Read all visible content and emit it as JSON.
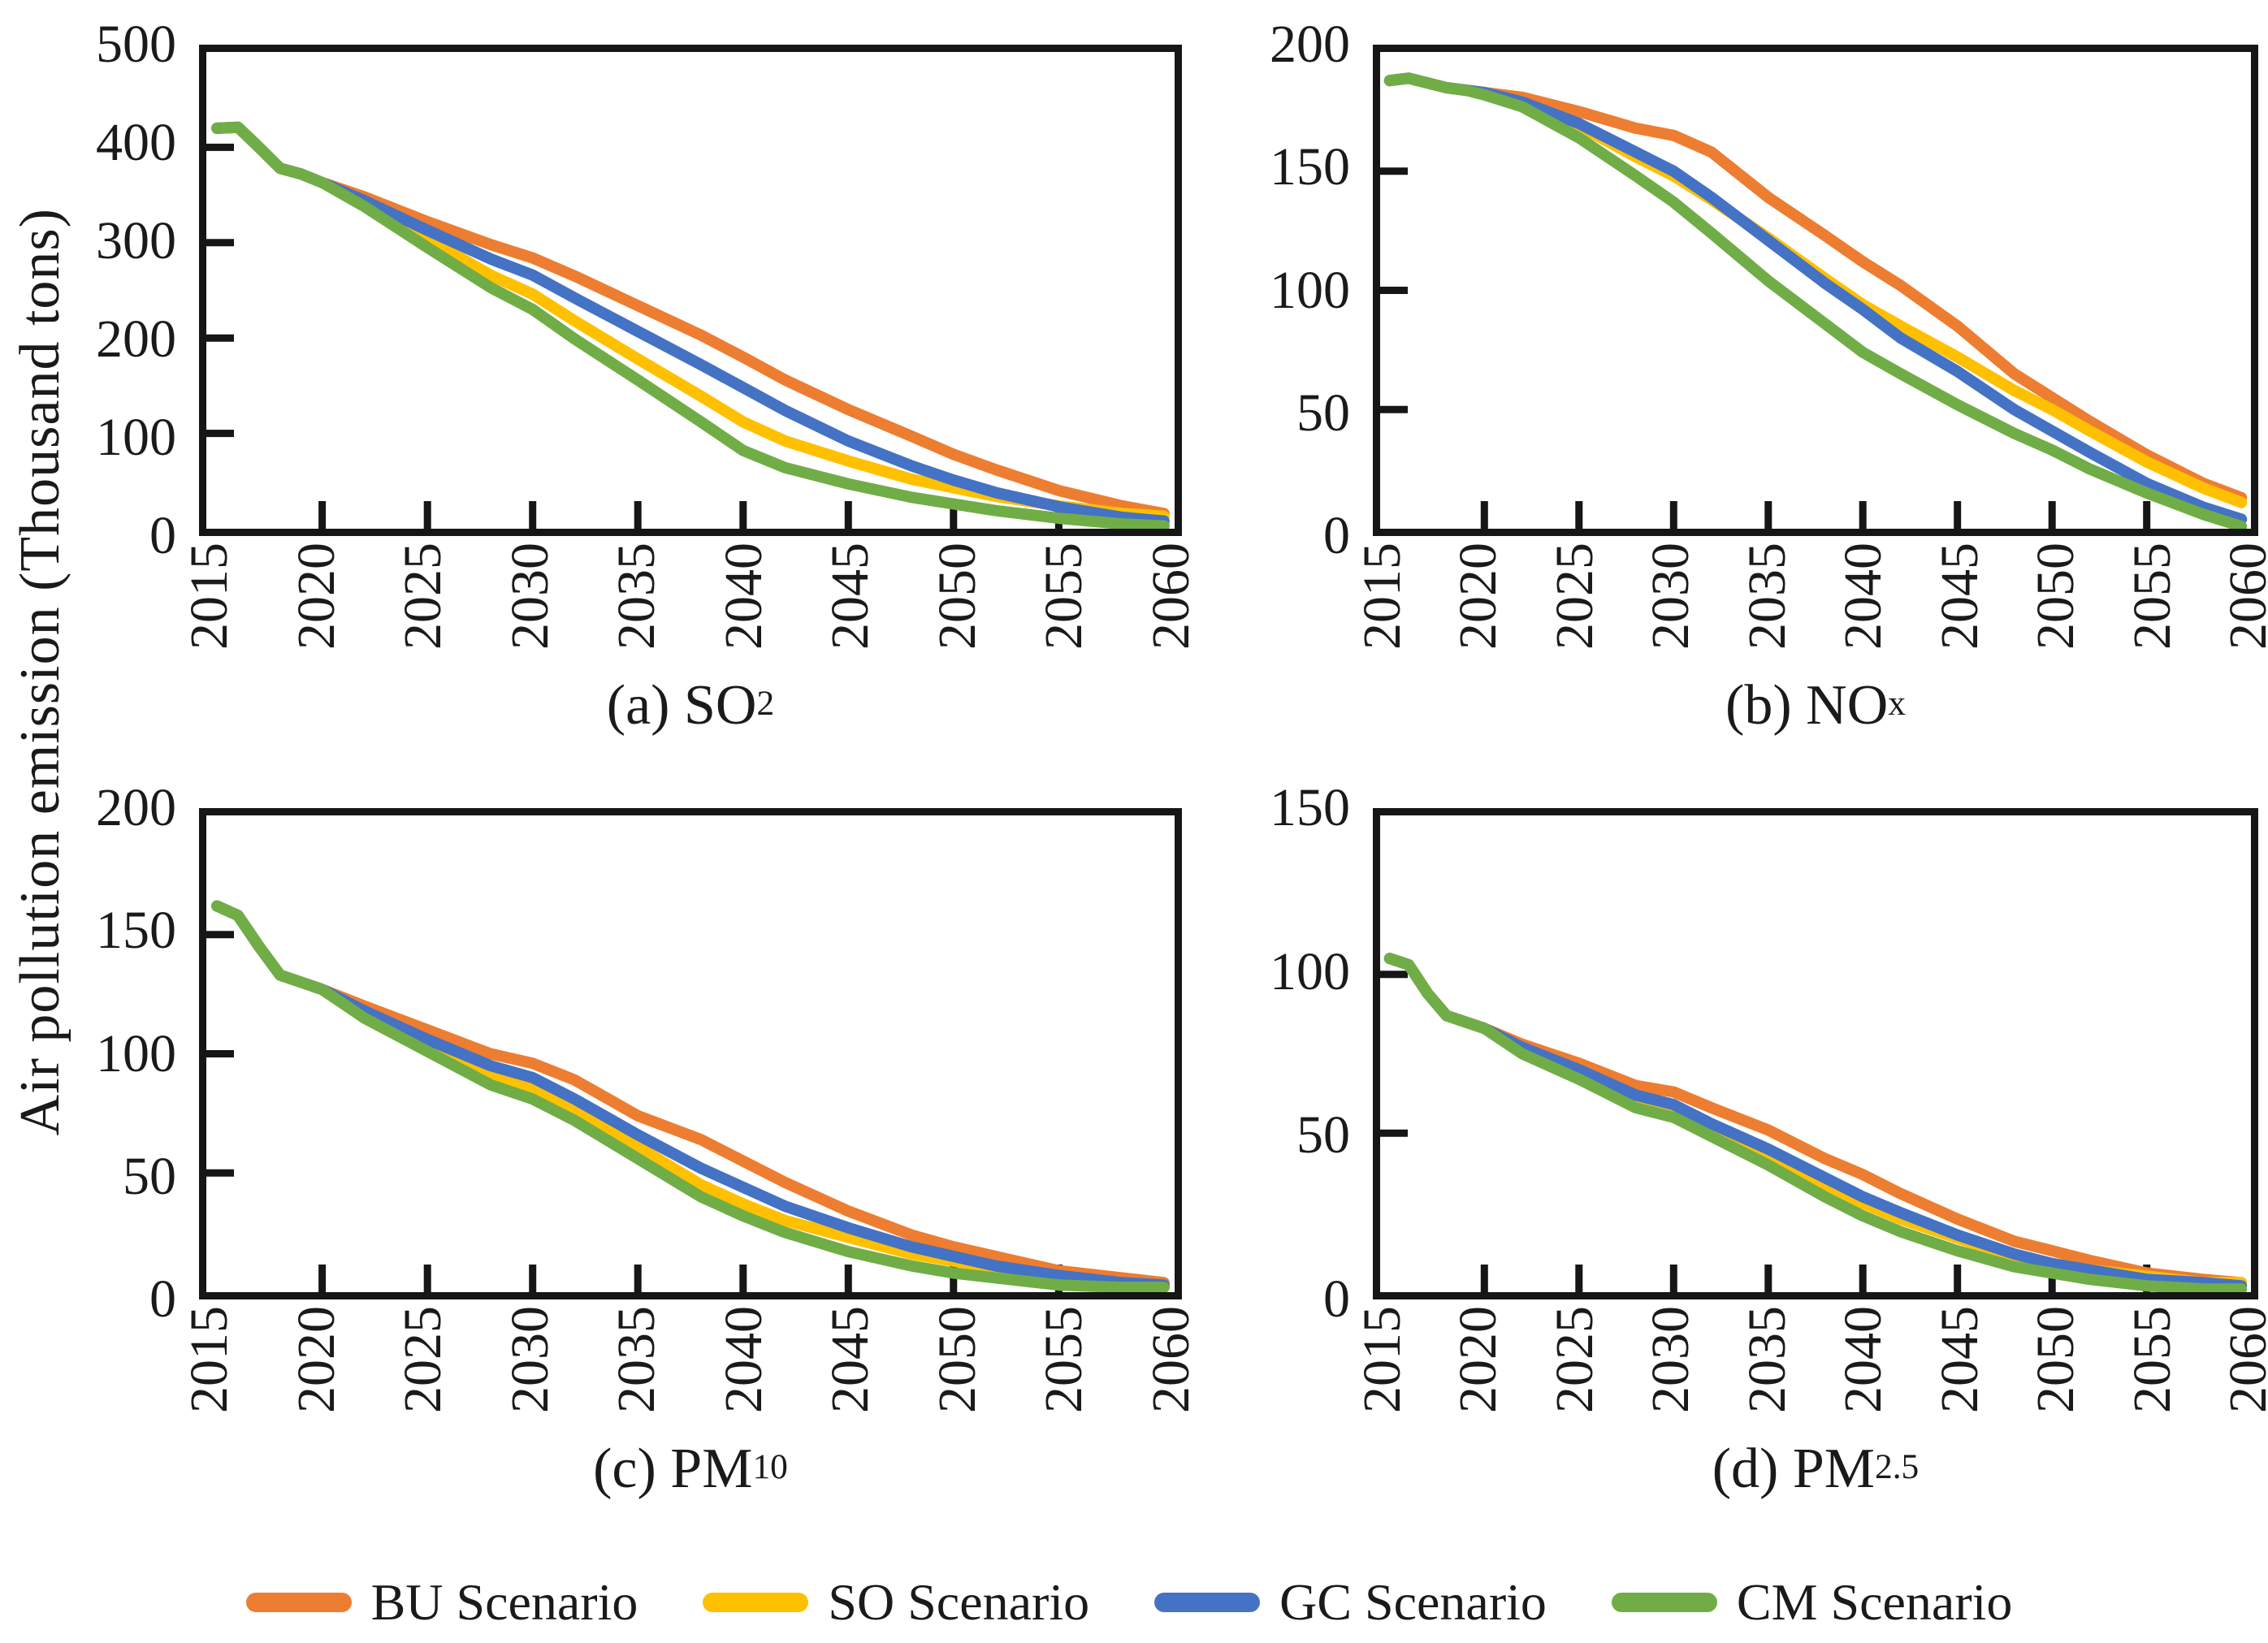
{
  "figure": {
    "y_axis_label": "Air pollution emission (Thousand tons)",
    "frame_color": "#161616",
    "background": "#ffffff"
  },
  "legend": {
    "items": [
      {
        "label": "BU Scenario",
        "color": "#ED7D31"
      },
      {
        "label": "SO Scenario",
        "color": "#FFC000"
      },
      {
        "label": "GC Scenario",
        "color": "#4472C4"
      },
      {
        "label": "CM Scenario",
        "color": "#70AD47"
      }
    ]
  },
  "chart_data": [
    {
      "id": "a",
      "type": "line",
      "title": "(a) SO2",
      "caption_main": "(a) SO",
      "caption_sub": "2",
      "ylim": [
        0,
        500
      ],
      "yticks": [
        0,
        100,
        200,
        300,
        400,
        500
      ],
      "xlim": [
        2015,
        2060
      ],
      "xticklabels": [
        "2015",
        "2020",
        "2025",
        "2030",
        "2035",
        "2040",
        "2045",
        "2050",
        "2055",
        "2060"
      ],
      "x": [
        2015,
        2016,
        2017,
        2018,
        2019,
        2020,
        2022,
        2025,
        2028,
        2030,
        2032,
        2035,
        2038,
        2040,
        2042,
        2045,
        2048,
        2050,
        2052,
        2055,
        2058,
        2060
      ],
      "series": [
        {
          "name": "BU Scenario",
          "color": "#ED7D31",
          "values": [
            420,
            421,
            400,
            378,
            372,
            363,
            348,
            322,
            298,
            284,
            265,
            234,
            203,
            180,
            156,
            125,
            97,
            78,
            62,
            40,
            24,
            16
          ]
        },
        {
          "name": "SO Scenario",
          "color": "#FFC000",
          "values": [
            420,
            421,
            400,
            378,
            372,
            363,
            341,
            304,
            266,
            246,
            218,
            178,
            139,
            112,
            92,
            71,
            52,
            43,
            34,
            24,
            16,
            13
          ]
        },
        {
          "name": "GC Scenario",
          "color": "#4472C4",
          "values": [
            420,
            421,
            400,
            378,
            372,
            363,
            344,
            313,
            283,
            266,
            242,
            207,
            172,
            148,
            124,
            92,
            66,
            51,
            38,
            23,
            12,
            8
          ]
        },
        {
          "name": "CM Scenario",
          "color": "#70AD47",
          "values": [
            420,
            421,
            400,
            378,
            372,
            363,
            338,
            295,
            253,
            230,
            199,
            156,
            112,
            82,
            64,
            47,
            33,
            26,
            19,
            11,
            5,
            3
          ]
        }
      ]
    },
    {
      "id": "b",
      "type": "line",
      "title": "(b) NOx",
      "caption_main": "(b) NO",
      "caption_sub": "x",
      "ylim": [
        0,
        200
      ],
      "yticks": [
        0,
        50,
        100,
        150,
        200
      ],
      "xlim": [
        2015,
        2060
      ],
      "xticklabels": [
        "2015",
        "2020",
        "2025",
        "2030",
        "2035",
        "2040",
        "2045",
        "2050",
        "2055",
        "2060"
      ],
      "x": [
        2015,
        2016,
        2017,
        2018,
        2019,
        2020,
        2022,
        2025,
        2028,
        2030,
        2032,
        2035,
        2038,
        2040,
        2042,
        2045,
        2048,
        2050,
        2052,
        2055,
        2058,
        2060
      ],
      "series": [
        {
          "name": "BU Scenario",
          "color": "#ED7D31",
          "values": [
            188,
            189,
            187,
            185,
            184,
            183,
            181,
            175,
            168,
            165,
            158,
            139,
            123,
            112,
            102,
            85,
            65,
            55,
            45,
            31,
            19,
            13
          ]
        },
        {
          "name": "SO Scenario",
          "color": "#FFC000",
          "values": [
            188,
            189,
            187,
            185,
            184,
            183,
            179,
            169,
            156,
            148,
            138,
            122,
            105,
            94,
            85,
            72,
            58,
            50,
            41,
            28,
            17,
            11
          ]
        },
        {
          "name": "GC Scenario",
          "color": "#4472C4",
          "values": [
            188,
            189,
            187,
            185,
            184,
            183,
            179,
            170,
            158,
            150,
            139,
            121,
            103,
            92,
            80,
            66,
            50,
            41,
            32,
            19,
            9,
            4
          ]
        },
        {
          "name": "CM Scenario",
          "color": "#70AD47",
          "values": [
            188,
            189,
            187,
            185,
            184,
            182,
            177,
            164,
            148,
            137,
            124,
            104,
            86,
            74,
            65,
            52,
            40,
            33,
            25,
            15,
            6,
            1
          ]
        }
      ]
    },
    {
      "id": "c",
      "type": "line",
      "title": "(c) PM10",
      "caption_main": "(c) PM",
      "caption_sub": "10",
      "ylim": [
        0,
        200
      ],
      "yticks": [
        0,
        50,
        100,
        150,
        200
      ],
      "xlim": [
        2015,
        2060
      ],
      "xticklabels": [
        "2015",
        "2020",
        "2025",
        "2030",
        "2035",
        "2040",
        "2045",
        "2050",
        "2055",
        "2060"
      ],
      "x": [
        2015,
        2016,
        2017,
        2018,
        2019,
        2020,
        2022,
        2025,
        2028,
        2030,
        2032,
        2035,
        2038,
        2040,
        2042,
        2045,
        2048,
        2050,
        2052,
        2055,
        2058,
        2060
      ],
      "series": [
        {
          "name": "BU Scenario",
          "color": "#ED7D31",
          "values": [
            162,
            158,
            145,
            133,
            130,
            127,
            120,
            110,
            100,
            96,
            89,
            74,
            64,
            55,
            46,
            34,
            24,
            19,
            15,
            9,
            6,
            4
          ]
        },
        {
          "name": "SO Scenario",
          "color": "#FFC000",
          "values": [
            162,
            158,
            145,
            133,
            130,
            127,
            117,
            104,
            91,
            85,
            76,
            61,
            45,
            37,
            30,
            23,
            16,
            13,
            10,
            6,
            4,
            3
          ]
        },
        {
          "name": "GC Scenario",
          "color": "#4472C4",
          "values": [
            162,
            158,
            145,
            133,
            130,
            127,
            118,
            106,
            95,
            90,
            81,
            66,
            52,
            44,
            36,
            27,
            19,
            15,
            11,
            7,
            4,
            3
          ]
        },
        {
          "name": "CM Scenario",
          "color": "#70AD47",
          "values": [
            162,
            158,
            145,
            133,
            130,
            127,
            115,
            101,
            87,
            81,
            72,
            56,
            40,
            32,
            25,
            17,
            11,
            8,
            6,
            3,
            2,
            2
          ]
        }
      ]
    },
    {
      "id": "d",
      "type": "line",
      "title": "(d) PM2.5",
      "caption_main": "(d) PM",
      "caption_sub": "2.5",
      "ylim": [
        0,
        150
      ],
      "yticks": [
        0,
        50,
        100,
        150
      ],
      "xlim": [
        2015,
        2060
      ],
      "xticklabels": [
        "2015",
        "2020",
        "2025",
        "2030",
        "2035",
        "2040",
        "2045",
        "2050",
        "2055",
        "2060"
      ],
      "x": [
        2015,
        2016,
        2017,
        2018,
        2019,
        2020,
        2022,
        2025,
        2028,
        2030,
        2032,
        2035,
        2038,
        2040,
        2042,
        2045,
        2048,
        2050,
        2052,
        2055,
        2058,
        2060
      ],
      "series": [
        {
          "name": "BU Scenario",
          "color": "#ED7D31",
          "values": [
            105,
            103,
            94,
            87,
            85,
            83,
            78,
            72,
            65,
            63,
            58,
            51,
            42,
            37,
            31,
            23,
            16,
            13,
            10,
            6,
            4,
            3
          ]
        },
        {
          "name": "SO Scenario",
          "color": "#FFC000",
          "values": [
            105,
            103,
            94,
            87,
            85,
            83,
            76,
            69,
            61,
            57,
            52,
            43,
            34,
            28,
            23,
            17,
            11,
            9,
            7,
            5,
            3,
            3
          ]
        },
        {
          "name": "GC Scenario",
          "color": "#4472C4",
          "values": [
            105,
            103,
            94,
            87,
            85,
            83,
            77,
            70,
            62,
            59,
            53,
            45,
            36,
            30,
            25,
            18,
            12,
            9,
            7,
            4,
            3,
            2
          ]
        },
        {
          "name": "CM Scenario",
          "color": "#70AD47",
          "values": [
            105,
            103,
            94,
            87,
            85,
            83,
            75,
            67,
            58,
            55,
            49,
            40,
            30,
            24,
            19,
            13,
            8,
            6,
            4,
            2,
            1,
            1
          ]
        }
      ]
    }
  ]
}
